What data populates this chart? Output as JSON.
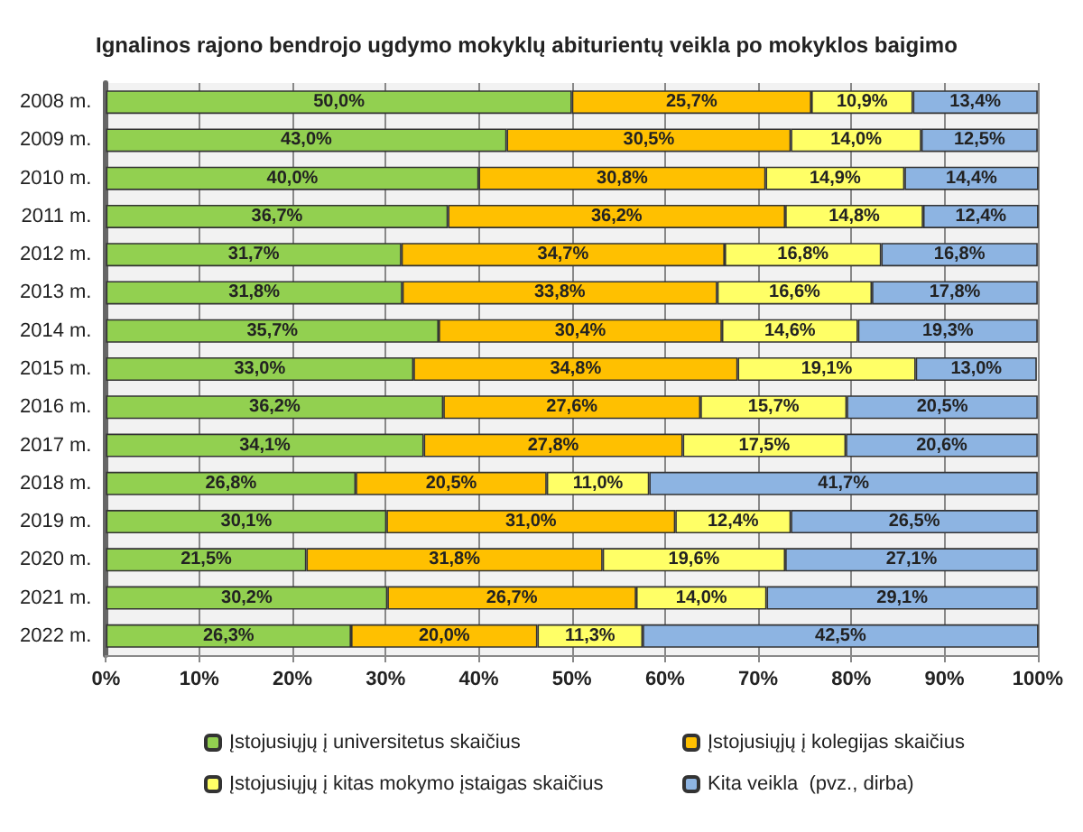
{
  "chart_data": {
    "type": "bar",
    "orientation": "horizontal",
    "stacked": true,
    "title": "Ignalinos rajono bendrojo ugdymo mokyklų abiturientų veikla po mokyklos baigimo",
    "categories": [
      "2008 m.",
      "2009 m.",
      "2010 m.",
      "2011 m.",
      "2012 m.",
      "2013 m.",
      "2014 m.",
      "2015 m.",
      "2016 m.",
      "2017 m.",
      "2018 m.",
      "2019 m.",
      "2020 m.",
      "2021 m.",
      "2022 m."
    ],
    "series": [
      {
        "name": "Įstojusiųjų į universitetus skaičius",
        "color": "#92d050",
        "values": [
          50.0,
          43.0,
          40.0,
          36.7,
          31.7,
          31.8,
          35.7,
          33.0,
          36.2,
          34.1,
          26.8,
          30.1,
          21.5,
          30.2,
          26.3
        ],
        "value_labels": [
          "50,0%",
          "43,0%",
          "40,0%",
          "36,7%",
          "31,7%",
          "31,8%",
          "35,7%",
          "33,0%",
          "36,2%",
          "34,1%",
          "26,8%",
          "30,1%",
          "21,5%",
          "30,2%",
          "26,3%"
        ]
      },
      {
        "name": "Įstojusiųjų į kolegijas skaičius",
        "color": "#ffc000",
        "values": [
          25.7,
          30.5,
          30.8,
          36.2,
          34.7,
          33.8,
          30.4,
          34.8,
          27.6,
          27.8,
          20.5,
          31.0,
          31.8,
          26.7,
          20.0
        ],
        "value_labels": [
          "25,7%",
          "30,5%",
          "30,8%",
          "36,2%",
          "34,7%",
          "33,8%",
          "30,4%",
          "34,8%",
          "27,6%",
          "27,8%",
          "20,5%",
          "31,0%",
          "31,8%",
          "26,7%",
          "20,0%"
        ]
      },
      {
        "name": "Įstojusiųjų į kitas mokymo įstaigas skaičius",
        "color": "#ffff66",
        "values": [
          10.9,
          14.0,
          14.9,
          14.8,
          16.8,
          16.6,
          14.6,
          19.1,
          15.7,
          17.5,
          11.0,
          12.4,
          19.6,
          14.0,
          11.3
        ],
        "value_labels": [
          "10,9%",
          "14,0%",
          "14,9%",
          "14,8%",
          "16,8%",
          "16,6%",
          "14,6%",
          "19,1%",
          "15,7%",
          "17,5%",
          "11,0%",
          "12,4%",
          "19,6%",
          "14,0%",
          "11,3%"
        ]
      },
      {
        "name": "Kita veikla  (pvz., dirba)",
        "color": "#8db4e2",
        "values": [
          13.4,
          12.5,
          14.4,
          12.4,
          16.8,
          17.8,
          19.3,
          13.0,
          20.5,
          20.6,
          41.7,
          26.5,
          27.1,
          29.1,
          42.5
        ],
        "value_labels": [
          "13,4%",
          "12,5%",
          "14,4%",
          "12,4%",
          "16,8%",
          "17,8%",
          "19,3%",
          "13,0%",
          "20,5%",
          "20,6%",
          "41,7%",
          "26,5%",
          "27,1%",
          "29,1%",
          "42,5%"
        ]
      }
    ],
    "xlim": [
      0,
      100
    ],
    "xticks": [
      {
        "value": 0,
        "label": "0%"
      },
      {
        "value": 10,
        "label": "10%"
      },
      {
        "value": 20,
        "label": "20%"
      },
      {
        "value": 30,
        "label": "30%"
      },
      {
        "value": 40,
        "label": "40%"
      },
      {
        "value": 50,
        "label": "50%"
      },
      {
        "value": 60,
        "label": "60%"
      },
      {
        "value": 70,
        "label": "70%"
      },
      {
        "value": 80,
        "label": "80%"
      },
      {
        "value": 90,
        "label": "90%"
      },
      {
        "value": 100,
        "label": "100%"
      }
    ],
    "grid": "x",
    "legend": "bottom"
  }
}
